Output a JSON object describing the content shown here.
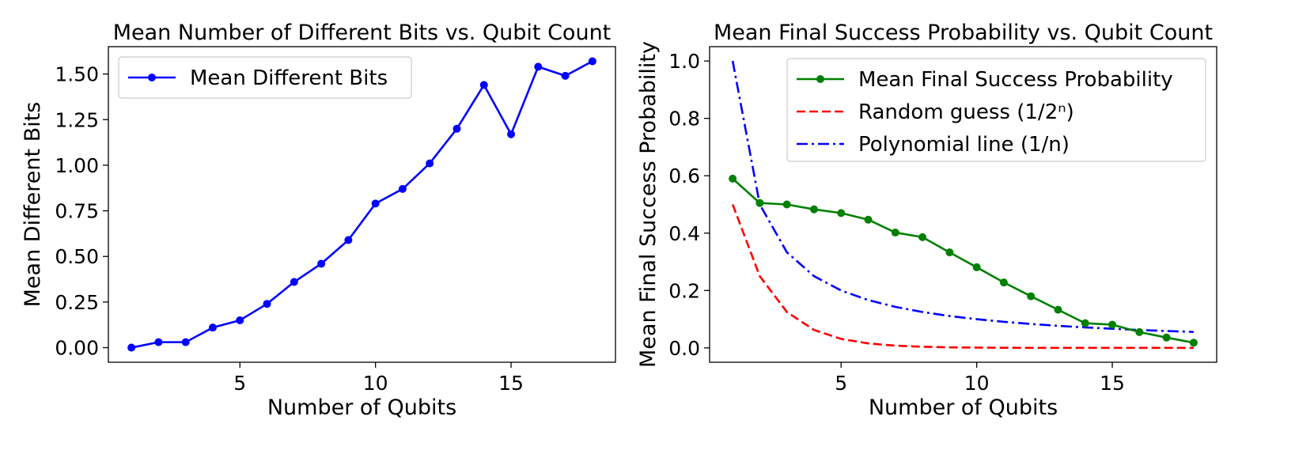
{
  "chart_data": [
    {
      "type": "line",
      "title": "Mean Number of Different Bits vs. Qubit Count",
      "xlabel": "Number of Qubits",
      "ylabel": "Mean Different Bits",
      "xlim": [
        0.15,
        18.85
      ],
      "ylim": [
        -0.08,
        1.65
      ],
      "xticks": [
        5,
        10,
        15
      ],
      "yticks": [
        0.0,
        0.25,
        0.5,
        0.75,
        1.0,
        1.25,
        1.5
      ],
      "ytick_labels": [
        "0.00",
        "0.25",
        "0.50",
        "0.75",
        "1.00",
        "1.25",
        "1.50"
      ],
      "grid": false,
      "legend_position": "upper-left",
      "series": [
        {
          "name": "Mean Different Bits",
          "color": "#0000ff",
          "style": "solid",
          "marker": "circle",
          "x": [
            1,
            2,
            3,
            4,
            5,
            6,
            7,
            8,
            9,
            10,
            11,
            12,
            13,
            14,
            15,
            16,
            17,
            18
          ],
          "y": [
            0.0,
            0.03,
            0.03,
            0.11,
            0.15,
            0.24,
            0.36,
            0.46,
            0.59,
            0.79,
            0.87,
            1.01,
            1.2,
            1.44,
            1.17,
            1.54,
            1.49,
            1.57
          ]
        }
      ]
    },
    {
      "type": "line",
      "title": "Mean Final Success Probability vs. Qubit Count",
      "xlabel": "Number of Qubits",
      "ylabel": "Mean Final Success Probability",
      "xlim": [
        0.15,
        18.85
      ],
      "ylim": [
        -0.05,
        1.05
      ],
      "xticks": [
        5,
        10,
        15
      ],
      "yticks": [
        0.0,
        0.2,
        0.4,
        0.6,
        0.8,
        1.0
      ],
      "ytick_labels": [
        "0.0",
        "0.2",
        "0.4",
        "0.6",
        "0.8",
        "1.0"
      ],
      "grid": false,
      "legend_position": "upper-right",
      "series": [
        {
          "name": "Mean Final Success Probability",
          "color": "#008000",
          "style": "solid",
          "marker": "circle",
          "x": [
            1,
            2,
            3,
            4,
            5,
            6,
            7,
            8,
            9,
            10,
            11,
            12,
            13,
            14,
            15,
            16,
            17,
            18
          ],
          "y": [
            0.59,
            0.505,
            0.5,
            0.483,
            0.47,
            0.447,
            0.402,
            0.386,
            0.333,
            0.281,
            0.228,
            0.18,
            0.133,
            0.086,
            0.081,
            0.055,
            0.036,
            0.018
          ]
        },
        {
          "name": "Random guess (1/2ⁿ)",
          "color": "#ff0000",
          "style": "dashed",
          "marker": "none",
          "x": [
            1,
            2,
            3,
            4,
            5,
            6,
            7,
            8,
            9,
            10,
            11,
            12,
            13,
            14,
            15,
            16,
            17,
            18
          ],
          "y": [
            0.5,
            0.25,
            0.125,
            0.0625,
            0.03125,
            0.015625,
            0.0078125,
            0.00390625,
            0.001953,
            0.000977,
            0.000488,
            0.000244,
            0.000122,
            6.1e-05,
            3.1e-05,
            1.5e-05,
            8e-06,
            4e-06
          ]
        },
        {
          "name": "Polynomial line (1/n)",
          "color": "#0000ff",
          "style": "dashdot",
          "marker": "none",
          "x": [
            1,
            2,
            3,
            4,
            5,
            6,
            7,
            8,
            9,
            10,
            11,
            12,
            13,
            14,
            15,
            16,
            17,
            18
          ],
          "y": [
            1.0,
            0.5,
            0.3333,
            0.25,
            0.2,
            0.1667,
            0.1429,
            0.125,
            0.1111,
            0.1,
            0.0909,
            0.0833,
            0.0769,
            0.0714,
            0.0667,
            0.0625,
            0.0588,
            0.0556
          ]
        }
      ]
    }
  ]
}
